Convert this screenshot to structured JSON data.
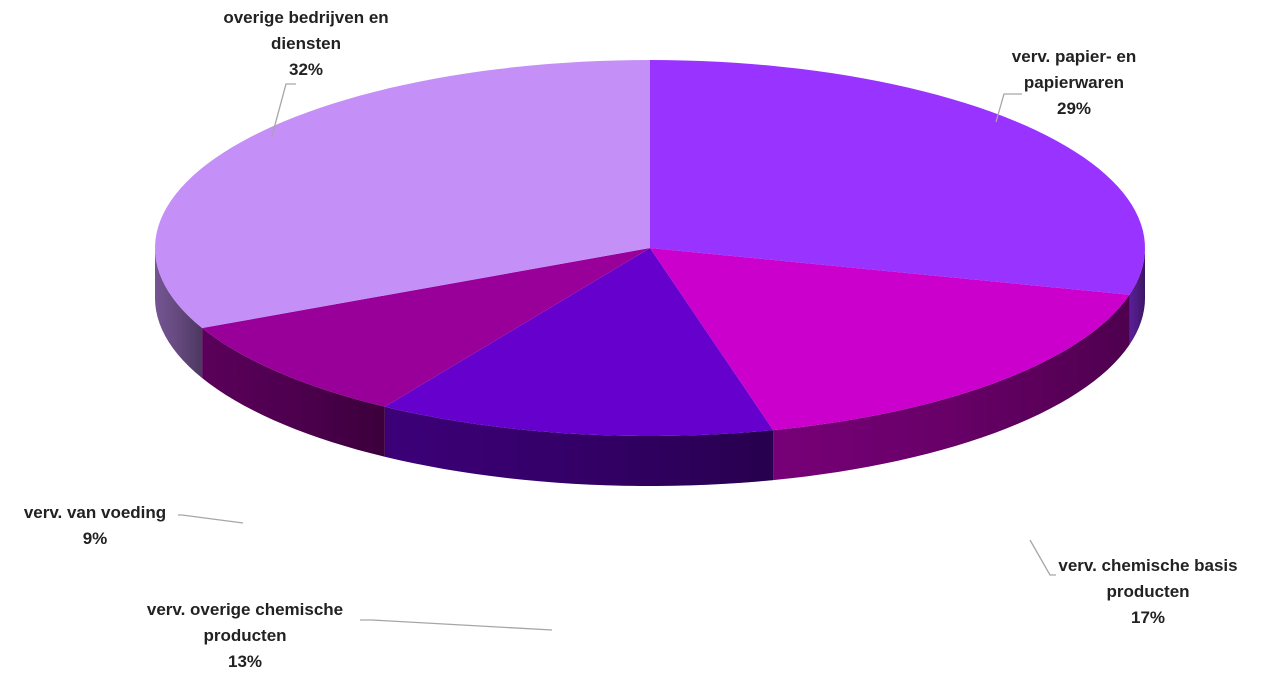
{
  "chart_data": {
    "type": "pie",
    "title": "",
    "style": "3d",
    "slices": [
      {
        "label_lines": [
          "verv. papier- en",
          "papierwaren"
        ],
        "percent_label": "29%",
        "value": 29,
        "color": "#9933ff"
      },
      {
        "label_lines": [
          "verv. chemische basis",
          "producten"
        ],
        "percent_label": "17%",
        "value": 17,
        "color": "#cc00cc"
      },
      {
        "label_lines": [
          "verv. overige chemische",
          "producten"
        ],
        "percent_label": "13%",
        "value": 13,
        "color": "#6600cc"
      },
      {
        "label_lines": [
          "verv. van voeding"
        ],
        "percent_label": "9%",
        "value": 9,
        "color": "#990099"
      },
      {
        "label_lines": [
          "overige bedrijven en",
          "diensten"
        ],
        "percent_label": "32%",
        "value": 32,
        "color": "#c490f7"
      }
    ]
  }
}
